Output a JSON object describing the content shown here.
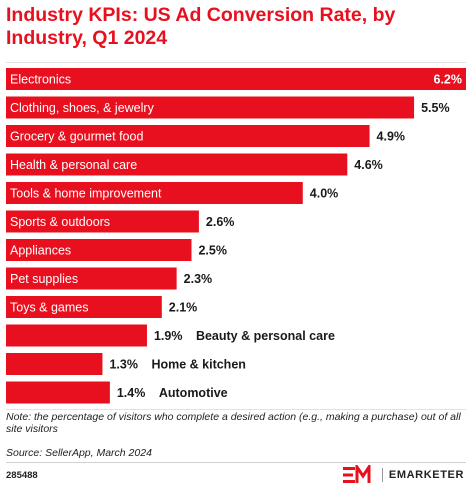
{
  "title": "Industry KPIs: US Ad Conversion Rate, by Industry, Q1 2024",
  "note": "Note: the percentage of visitors who complete a desired action (e.g., making a purchase) out of all site visitors",
  "source": "Source: SellerApp, March 2024",
  "chart_id": "285488",
  "brand": "EMARKETER",
  "colors": {
    "bar": "#e8101f",
    "title": "#e8101f"
  },
  "chart_data": {
    "type": "bar",
    "orientation": "horizontal",
    "categories": [
      "Electronics",
      "Clothing, shoes, & jewelry",
      "Grocery & gourmet food",
      "Health & personal care",
      "Tools & home improvement",
      "Sports & outdoors",
      "Appliances",
      "Pet supplies",
      "Toys & games",
      "Beauty & personal care",
      "Home & kitchen",
      "Automotive"
    ],
    "values": [
      6.2,
      5.5,
      4.9,
      4.6,
      4.0,
      2.6,
      2.5,
      2.3,
      2.1,
      1.9,
      1.3,
      1.4
    ],
    "value_labels": [
      "6.2%",
      "5.5%",
      "4.9%",
      "4.6%",
      "4.0%",
      "2.6%",
      "2.5%",
      "2.3%",
      "2.1%",
      "1.9%",
      "1.3%",
      "1.4%"
    ],
    "xlim": [
      0,
      6.2
    ],
    "grid": false,
    "legend": "none"
  }
}
